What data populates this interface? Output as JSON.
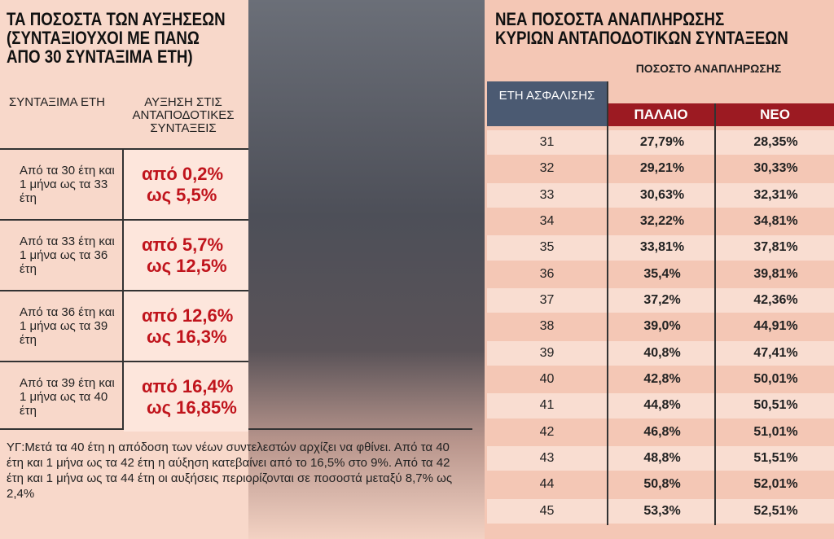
{
  "left": {
    "title": [
      "ΤΑ ΠΟΣΟΣΤΑ ΤΩΝ ΑΥΞΗΣΕΩΝ",
      "(ΣΥΝΤΑΞΙΟΥΧΟΙ ΜΕ ΠΑΝΩ",
      "ΑΠΟ 30 ΣΥΝΤΑΞΙΜΑ ΕΤΗ)"
    ],
    "table": {
      "headers": [
        "ΣΥΝΤΑΞΙΜΑ ΕΤΗ",
        "ΑΥΞΗΣΗ ΣΤΙΣ ΑΝΤΑΠΟΔΟΤΙΚΕΣ ΣΥΝΤΑΞΕΙΣ"
      ],
      "rows": [
        [
          "Από τα 30 έτη και 1 μήνα ως τα 33 έτη",
          "από 0,2%",
          "ως 5,5%"
        ],
        [
          "Από τα 33 έτη και 1 μήνα ως τα 36 έτη",
          "από 5,7%",
          "ως 12,5%"
        ],
        [
          "Από τα 36 έτη και 1 μήνα ως τα 39 έτη",
          "από 12,6%",
          "ως 16,3%"
        ],
        [
          "Από τα 39 έτη και 1 μήνα ως τα 40 έτη",
          "από 16,4%",
          "ως 16,85%"
        ]
      ]
    },
    "note": "ΥΓ:Μετά τα 40 έτη η απόδοση των νέων συντελεστών αρχίζει να φθίνει. Από τα 40 έτη και 1 μήνα ως τα 42 έτη η αύξηση κατεβαίνει από το 16,5% στο 9%. Από τα 42 έτη και 1 μήνα ως τα 44 έτη οι αυξήσεις περιορίζονται σε ποσοστά μεταξύ 8,7% ως 2,4%"
  },
  "right": {
    "title": [
      "ΝΕΑ ΠΟΣΟΣΤΑ ΑΝΑΠΛΗΡΩΣΗΣ",
      "ΚΥΡΙΩΝ ΑΝΤΑΠΟΔΟΤΙΚΩΝ ΣΥΝΤΑΞΕΩΝ"
    ],
    "table": {
      "headers": [
        "ΕΤΗ ΑΣΦΑΛΙΣΗΣ",
        "ΠΟΣΟΣΤΟ ΑΝΑΠΛΗΡΩΣΗΣ",
        "ΠΑΛΑΙΟ",
        "ΝΕΟ"
      ],
      "rows": [
        [
          "31",
          "27,79%",
          "28,35%"
        ],
        [
          "32",
          "29,21%",
          "30,33%"
        ],
        [
          "33",
          "30,63%",
          "32,31%"
        ],
        [
          "34",
          "32,22%",
          "34,81%"
        ],
        [
          "35",
          "33,81%",
          "37,81%"
        ],
        [
          "36",
          "35,4%",
          "39,81%"
        ],
        [
          "37",
          "37,2%",
          "42,36%"
        ],
        [
          "38",
          "39,0%",
          "44,91%"
        ],
        [
          "39",
          "40,8%",
          "47,41%"
        ],
        [
          "40",
          "42,8%",
          "50,01%"
        ],
        [
          "41",
          "44,8%",
          "50,51%"
        ],
        [
          "42",
          "46,8%",
          "51,01%"
        ],
        [
          "43",
          "48,8%",
          "51,51%"
        ],
        [
          "44",
          "50,8%",
          "52,01%"
        ],
        [
          "45",
          "53,3%",
          "52,51%"
        ]
      ]
    }
  }
}
